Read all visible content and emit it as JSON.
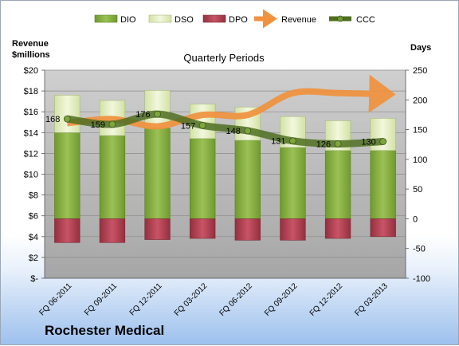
{
  "chart_data": {
    "type": "bar",
    "title": "Quarterly Periods",
    "company": "Rochester Medical",
    "y_left_label": [
      "Revenue",
      "$millions"
    ],
    "y_right_label": "Days",
    "y_left_ticks": [
      "$-",
      "$2",
      "$4",
      "$6",
      "$8",
      "$10",
      "$12",
      "$14",
      "$16",
      "$18",
      "$20"
    ],
    "y_right_ticks": [
      "-100",
      "-50",
      "0",
      "50",
      "100",
      "150",
      "200",
      "250"
    ],
    "ylim_left": [
      0,
      20
    ],
    "ylim_right": [
      -100,
      250
    ],
    "categories": [
      "FQ 06-2011",
      "FQ 09-2011",
      "FQ 12-2011",
      "FQ 03-2012",
      "FQ 06-2012",
      "FQ 09-2012",
      "FQ 12-2012",
      "FQ 03-2013"
    ],
    "legend": [
      "DIO",
      "DSO",
      "DPO",
      "Revenue",
      "CCC"
    ],
    "series": [
      {
        "name": "DIO",
        "axis": "right",
        "values": [
          145,
          140,
          153,
          135,
          132,
          120,
          115,
          115
        ]
      },
      {
        "name": "DSO",
        "axis": "right",
        "values": [
          63,
          59,
          63,
          58,
          56,
          52,
          50,
          54
        ]
      },
      {
        "name": "DPO",
        "axis": "right",
        "values": [
          -40,
          -40,
          -35,
          -33,
          -36,
          -36,
          -33,
          -30
        ]
      },
      {
        "name": "Revenue",
        "axis": "left",
        "values": [
          14.9,
          15.3,
          14.6,
          15.7,
          15.7,
          17.8,
          17.8,
          17.7
        ]
      },
      {
        "name": "CCC",
        "axis": "right",
        "values": [
          168,
          159,
          176,
          157,
          148,
          131,
          126,
          130
        ]
      }
    ],
    "ccc_labels": [
      "168",
      "159",
      "176",
      "157",
      "148",
      "131",
      "126",
      "130"
    ],
    "colors": {
      "DIO": "#8fb043",
      "DSO": "#e6efc9",
      "DPO": "#b9485a",
      "Revenue": "#f0923e",
      "CCC": "#4f6e22",
      "plot_bg": "#c2c2c2"
    },
    "grid": true,
    "legend_position": "top"
  }
}
